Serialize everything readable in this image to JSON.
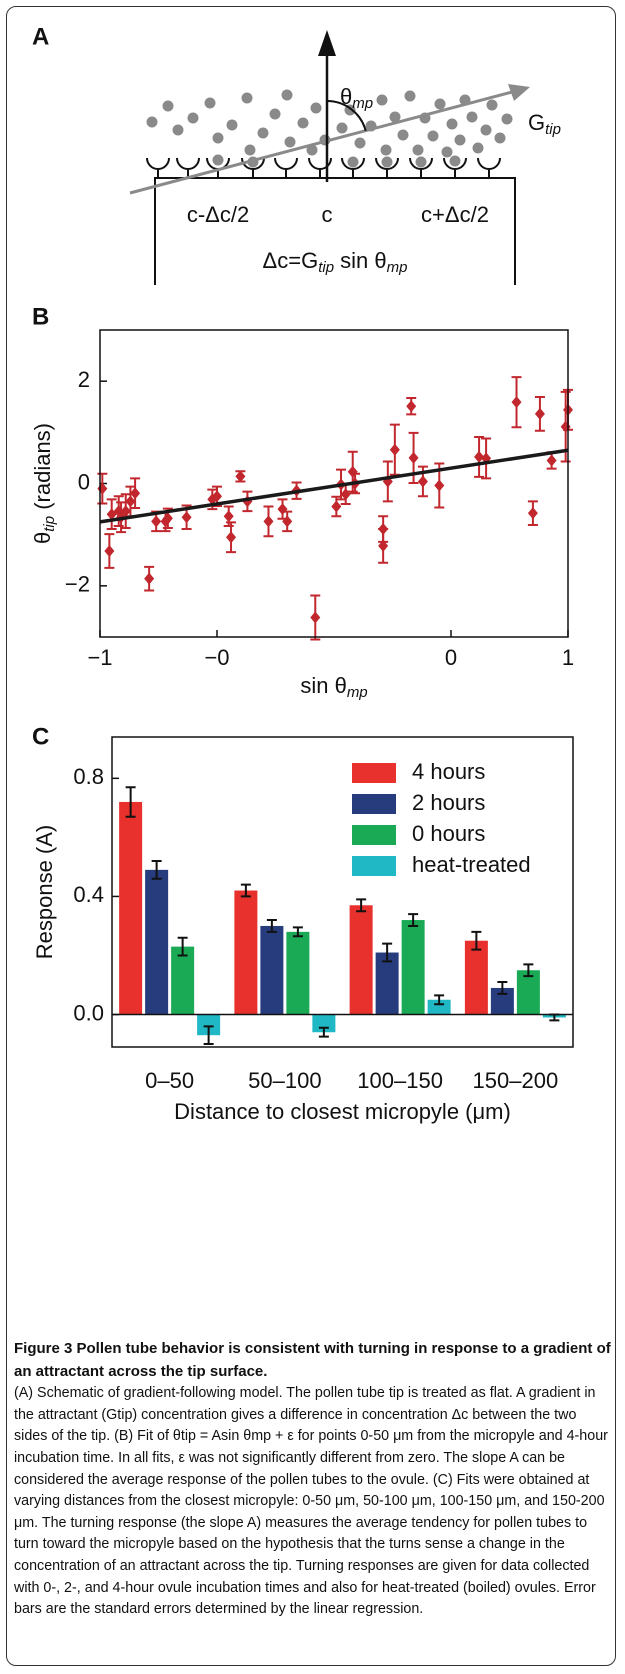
{
  "diagram": {
    "panel_label": "A",
    "angle_label": [
      "θ",
      "mp"
    ],
    "gradient_label": [
      "G",
      "tip"
    ],
    "left_label": "c-Δc/2",
    "center_label": "c",
    "right_label": "c+Δc/2",
    "equation": [
      "Δc=G",
      "tip",
      " sin θ",
      "mp"
    ]
  },
  "chart_data": [
    {
      "type": "scatter",
      "panel_label": "B",
      "xlabel": [
        "sin θ",
        "mp"
      ],
      "ylabel": [
        "θ",
        "tip",
        " (radians)"
      ],
      "xlim": [
        -1,
        1
      ],
      "ylim": [
        -3,
        3
      ],
      "xticks": [
        {
          "value": -1,
          "label": "−1"
        },
        {
          "value": -0.5,
          "label": "−0"
        },
        {
          "value": 0.5,
          "label": "0"
        },
        1
      ],
      "yticks": [
        2,
        0,
        {
          "value": -2,
          "label": "−2"
        }
      ],
      "x": [
        -0.99,
        -0.96,
        -0.95,
        -0.92,
        -0.91,
        -0.89,
        -0.87,
        -0.85,
        -0.79,
        -0.76,
        -0.72,
        -0.71,
        -0.63,
        -0.52,
        -0.5,
        -0.45,
        -0.44,
        -0.4,
        -0.37,
        -0.28,
        -0.22,
        -0.2,
        -0.16,
        -0.08,
        0.01,
        0.03,
        0.05,
        0.08,
        0.09,
        0.21,
        0.21,
        0.23,
        0.26,
        0.33,
        0.34,
        0.38,
        0.45,
        0.62,
        0.65,
        0.78,
        0.85,
        0.88,
        0.93,
        0.99,
        1.0
      ],
      "series": [
        {
          "color": "#c1272d",
          "values": [
            -0.1,
            -1.32,
            -0.6,
            -0.54,
            -0.66,
            -0.54,
            -0.35,
            -0.19,
            -1.86,
            -0.74,
            -0.74,
            -0.68,
            -0.66,
            -0.31,
            -0.25,
            -0.64,
            -1.05,
            0.14,
            -0.35,
            -0.74,
            -0.5,
            -0.74,
            -0.14,
            -2.62,
            -0.45,
            -0.02,
            -0.21,
            0.23,
            0.0,
            -0.89,
            -1.22,
            0.04,
            0.66,
            1.51,
            0.5,
            0.04,
            -0.04,
            0.52,
            0.49,
            1.59,
            -0.58,
            1.36,
            0.45,
            1.11,
            1.44
          ],
          "errors": [
            0.29,
            0.33,
            0.29,
            0.29,
            0.29,
            0.33,
            0.29,
            0.29,
            0.23,
            0.19,
            0.19,
            0.19,
            0.23,
            0.19,
            0.19,
            0.19,
            0.29,
            0.1,
            0.19,
            0.29,
            0.19,
            0.19,
            0.16,
            0.43,
            0.19,
            0.29,
            0.19,
            0.39,
            0.19,
            0.25,
            0.33,
            0.39,
            0.49,
            0.16,
            0.49,
            0.29,
            0.43,
            0.39,
            0.39,
            0.49,
            0.23,
            0.33,
            0.16,
            0.68,
            0.39
          ]
        }
      ],
      "fit": {
        "x": [
          -1,
          1
        ],
        "values": [
          -0.75,
          0.65
        ],
        "color": "#1a1a1a"
      }
    },
    {
      "type": "bar",
      "panel_label": "C",
      "xlabel": "Distance to closest micropyle (μm)",
      "ylabel": "Response (A)",
      "categories": [
        "0–50",
        "50–100",
        "100–150",
        "150–200"
      ],
      "ylim": [
        -0.11,
        0.94
      ],
      "yticks": [
        {
          "value": 0,
          "label": "0.0"
        },
        0.4,
        0.8
      ],
      "legend": "upper right",
      "series": [
        {
          "name": "4 hours",
          "color": "#e8302c",
          "values": [
            0.72,
            0.42,
            0.37,
            0.25
          ],
          "errors": [
            0.05,
            0.02,
            0.02,
            0.03
          ]
        },
        {
          "name": "2 hours",
          "color": "#263c7d",
          "values": [
            0.49,
            0.3,
            0.21,
            0.09
          ],
          "errors": [
            0.03,
            0.02,
            0.03,
            0.02
          ]
        },
        {
          "name": "0 hours",
          "color": "#1aaa55",
          "values": [
            0.23,
            0.28,
            0.32,
            0.15
          ],
          "errors": [
            0.03,
            0.015,
            0.02,
            0.02
          ]
        },
        {
          "name": "heat-treated",
          "color": "#1fb8c4",
          "values": [
            -0.07,
            -0.06,
            0.05,
            -0.01
          ],
          "errors": [
            0.03,
            0.015,
            0.015,
            0.01
          ]
        }
      ]
    }
  ],
  "caption": {
    "title": "Figure 3 Pollen tube behavior is consistent with turning in response to a gradient of an attractant across the tip surface.",
    "body": "(A) Schematic of gradient-following model. The pollen tube tip is treated as flat. A gradient in the attractant (Gtip) concentration gives a difference in concentration Δc between the two sides of the tip. (B) Fit of θtip = Asin θmp + ε for points 0-50 μm from the micropyle and 4-hour incubation time. In all fits, ε was not significantly different from zero. The slope A can be considered the average response of the pollen tubes to the ovule. (C) Fits were obtained at varying distances from the closest micropyle: 0-50 μm, 50-100 μm, 100-150 μm, and 150-200 μm. The turning response (the slope A) measures the average tendency for pollen tubes to turn toward the micropyle based on the hypothesis that the turns sense a change in the concentration of an attractant across the tip. Turning responses are given for data collected with 0-, 2-, and 4-hour ovule incubation times and also for heat-treated (boiled) ovules. Error bars are the standard errors determined by the linear regression."
  }
}
